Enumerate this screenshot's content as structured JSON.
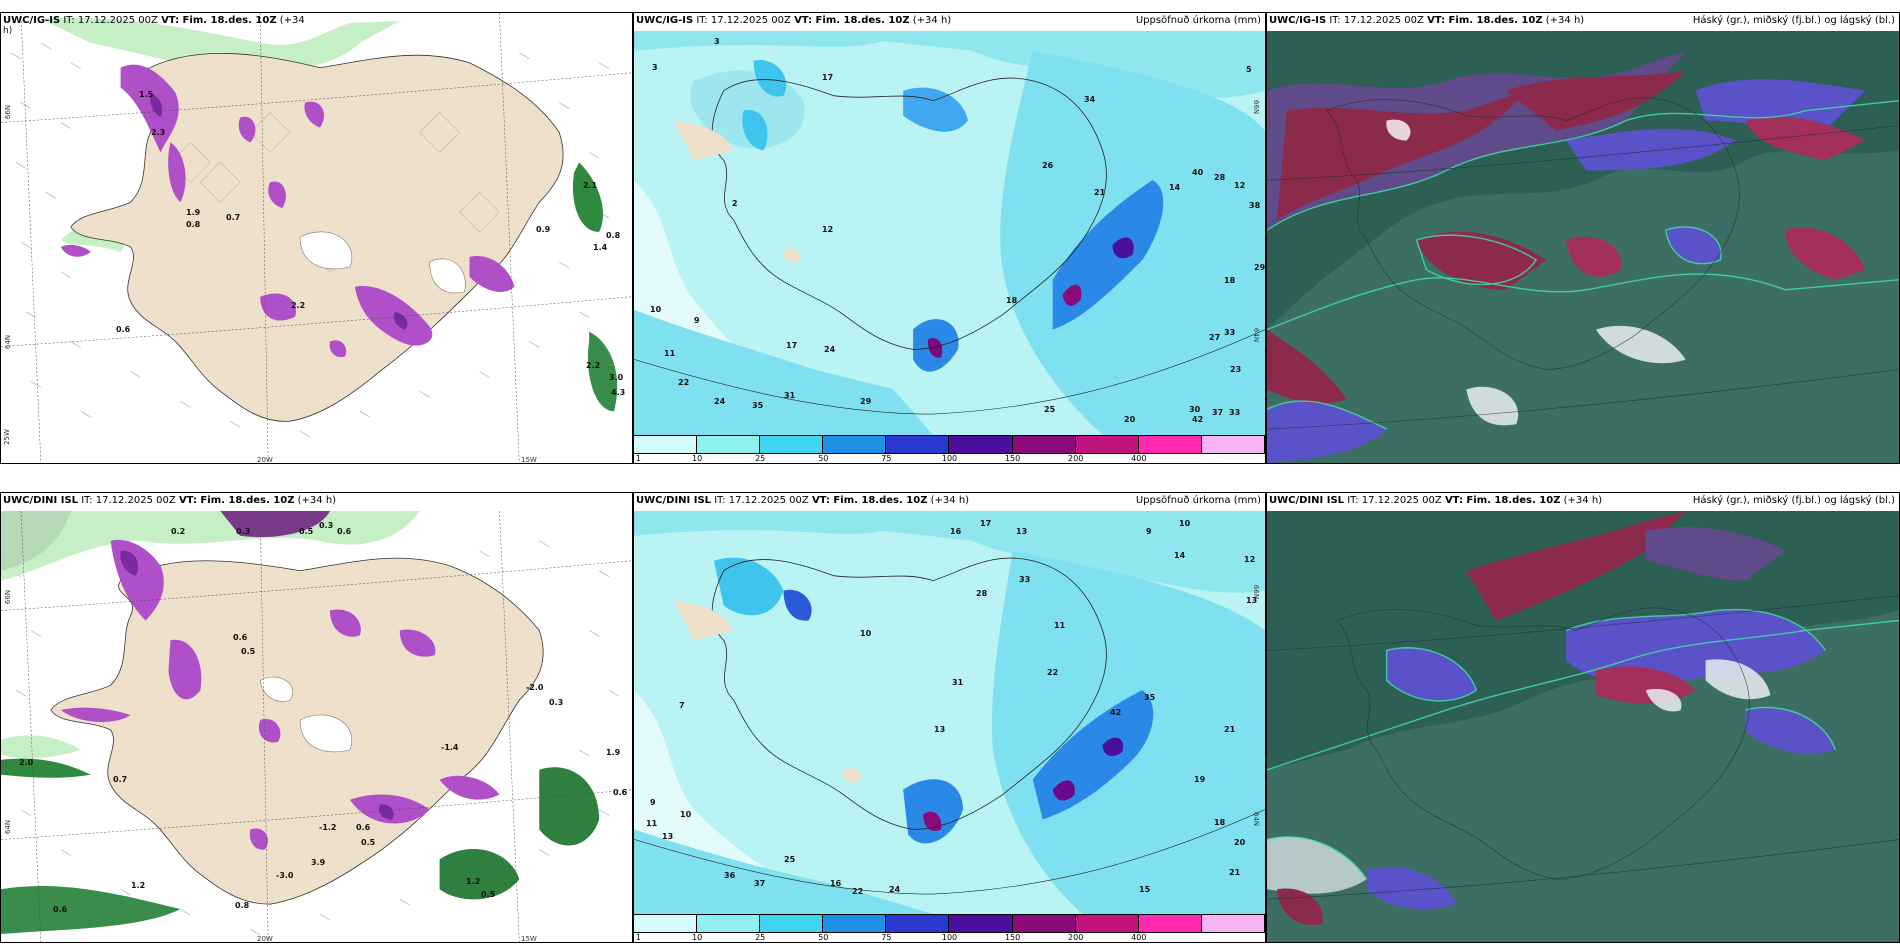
{
  "panels": [
    {
      "id": "top-left",
      "title_model": "UWC/IG-IS",
      "title_init": "IT: 17.12.2025 00Z",
      "title_vt": "VT: Fim. 18.des. 10Z",
      "title_lead": "(+34",
      "title_wrap": "h)",
      "right_label": "",
      "axis_labels": [
        "66N",
        "64N",
        "25W",
        "20W",
        "15W"
      ],
      "values": [
        "0.9",
        "0.8",
        "1.4",
        "2.2",
        "0.6",
        "2.2",
        "3.0",
        "4.3",
        "2.1",
        "1.9",
        "0.7",
        "0.8",
        "1.5",
        "2.3"
      ]
    },
    {
      "id": "top-middle",
      "title_model": "UWC/IG-IS",
      "title_init": "IT: 17.12.2025 00Z",
      "title_vt": "VT: Fim. 18.des. 10Z",
      "title_lead": "(+34 h)",
      "title_wrap": "",
      "right_label": "Uppsöfnuð úrkoma (mm)",
      "axis_labels": [
        "66N",
        "64N"
      ],
      "values": [
        "3",
        "3",
        "5",
        "2",
        "17",
        "12",
        "10",
        "9",
        "11",
        "22",
        "24",
        "35",
        "31",
        "17",
        "24",
        "29",
        "33",
        "37",
        "33",
        "38",
        "29",
        "18",
        "42",
        "20",
        "27",
        "23",
        "25",
        "30",
        "18",
        "26",
        "21",
        "28",
        "40",
        "12",
        "14",
        "34"
      ]
    },
    {
      "id": "top-right",
      "title_model": "UWC/IG-IS",
      "title_init": "IT: 17.12.2025 00Z",
      "title_vt": "VT: Fim. 18.des. 10Z",
      "title_lead": "(+34 h)",
      "title_wrap": "",
      "right_label": "Háský (gr.), miðský (fj.bl.) og lágský (bl.)",
      "axis_labels": [],
      "values": []
    },
    {
      "id": "bottom-left",
      "title_model": "UWC/DINI ISL",
      "title_init": "IT: 17.12.2025 00Z",
      "title_vt": "VT: Fim. 18.des. 10Z",
      "title_lead": "(+34 h)",
      "title_wrap": "",
      "right_label": "",
      "axis_labels": [
        "66N",
        "64N",
        "20W",
        "15W"
      ],
      "values": [
        "0.2",
        "0.3",
        "0.5",
        "0.3",
        "0.6",
        "0.6",
        "0.5",
        "-1.4",
        "-1.2",
        "0.6",
        "0.5",
        "-3.0",
        "3.9",
        "1.2",
        "0.5",
        "0.8",
        "1.2",
        "0.6",
        "0.7",
        "2.0",
        "1.9",
        "0.6",
        "-2.0",
        "0.3"
      ]
    },
    {
      "id": "bottom-middle",
      "title_model": "UWC/DINI ISL",
      "title_init": "IT: 17.12.2025 00Z",
      "title_vt": "VT: Fim. 18.des. 10Z",
      "title_lead": "(+34 h)",
      "title_wrap": "",
      "right_label": "Uppsöfnuð úrkoma (mm)",
      "axis_labels": [
        "66N",
        "64N"
      ],
      "values": [
        "16",
        "17",
        "13",
        "9",
        "10",
        "14",
        "12",
        "13",
        "7",
        "9",
        "11",
        "10",
        "13",
        "25",
        "36",
        "37",
        "16",
        "22",
        "24",
        "15",
        "21",
        "19",
        "18",
        "20",
        "21",
        "35",
        "33",
        "28",
        "31",
        "10",
        "13",
        "11",
        "22",
        "42"
      ]
    },
    {
      "id": "bottom-right",
      "title_model": "UWC/DINI ISL",
      "title_init": "IT: 17.12.2025 00Z",
      "title_vt": "VT: Fim. 18.des. 10Z",
      "title_lead": "(+34 h)",
      "title_wrap": "",
      "right_label": "Háský (gr.), miðský (fj.bl.) og lágský (bl.)",
      "axis_labels": [],
      "values": []
    }
  ],
  "colorbar": {
    "ticks": [
      "1",
      "10",
      "25",
      "50",
      "75",
      "100",
      "150",
      "200",
      "400"
    ],
    "colors": [
      "#d6fbfb",
      "#8ff0f0",
      "#3fd4f0",
      "#2090e6",
      "#2a3ad0",
      "#4b0f9e",
      "#8a0a7a",
      "#c2127e",
      "#ff2ab0",
      "#f6b4f2"
    ]
  },
  "colors": {
    "land_precip_type": "#efe0cc",
    "snow_purple": "#b050c8",
    "rain_green": "#9de39d",
    "precip_sea": "#b9f3f3",
    "cloud_high": "#8b2a4a",
    "cloud_mid": "#5a52c8",
    "cloud_low": "#2e6a5a"
  }
}
